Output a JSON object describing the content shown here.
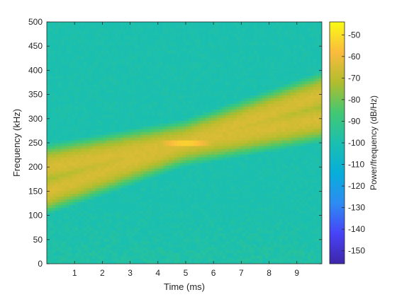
{
  "chart_data": {
    "type": "heatmap",
    "title": "",
    "xlabel": "Time (ms)",
    "ylabel": "Frequency (kHz)",
    "xlim": [
      0,
      9.9
    ],
    "ylim": [
      0,
      500
    ],
    "x_ticks": [
      1,
      2,
      3,
      4,
      5,
      6,
      7,
      8,
      9
    ],
    "x_tick_labels": [
      "1",
      "2",
      "3",
      "4",
      "5",
      "6",
      "7",
      "8",
      "9"
    ],
    "y_ticks": [
      0,
      50,
      100,
      150,
      200,
      250,
      300,
      350,
      400,
      450,
      500
    ],
    "y_tick_labels": [
      "0",
      "50",
      "100",
      "150",
      "200",
      "250",
      "300",
      "350",
      "400",
      "450",
      "500"
    ],
    "colorbar": {
      "label": "Power/frequency (dB/Hz)",
      "limits": [
        -156,
        -44
      ],
      "ticks": [
        -50,
        -60,
        -70,
        -80,
        -90,
        -100,
        -110,
        -120,
        -130,
        -140,
        -150
      ],
      "tick_labels": [
        "-50",
        "-60",
        "-70",
        "-80",
        "-90",
        "-100",
        "-110",
        "-120",
        "-130",
        "-140",
        "-150"
      ],
      "colormap": "parula"
    },
    "background_level_db": -100,
    "signals": [
      {
        "f_start_khz": 200,
        "f_end_khz": 300,
        "t_start_ms": 0,
        "t_end_ms": 9.9,
        "peak_level_db": -65
      },
      {
        "f_start_khz": 150,
        "f_end_khz": 350,
        "t_start_ms": 0,
        "t_end_ms": 9.9,
        "peak_level_db": -65
      }
    ],
    "crossing": {
      "time_ms": 5,
      "frequency_khz": 250,
      "peak_level_db": -49
    },
    "colors": {
      "colormap_stops": [
        "#3e26a8",
        "#4743f8",
        "#2d8cf2",
        "#07aeda",
        "#1bbfb0",
        "#42c872",
        "#b1bd2d",
        "#fbbb3d",
        "#f9fb15"
      ],
      "axis": "#262626"
    }
  }
}
